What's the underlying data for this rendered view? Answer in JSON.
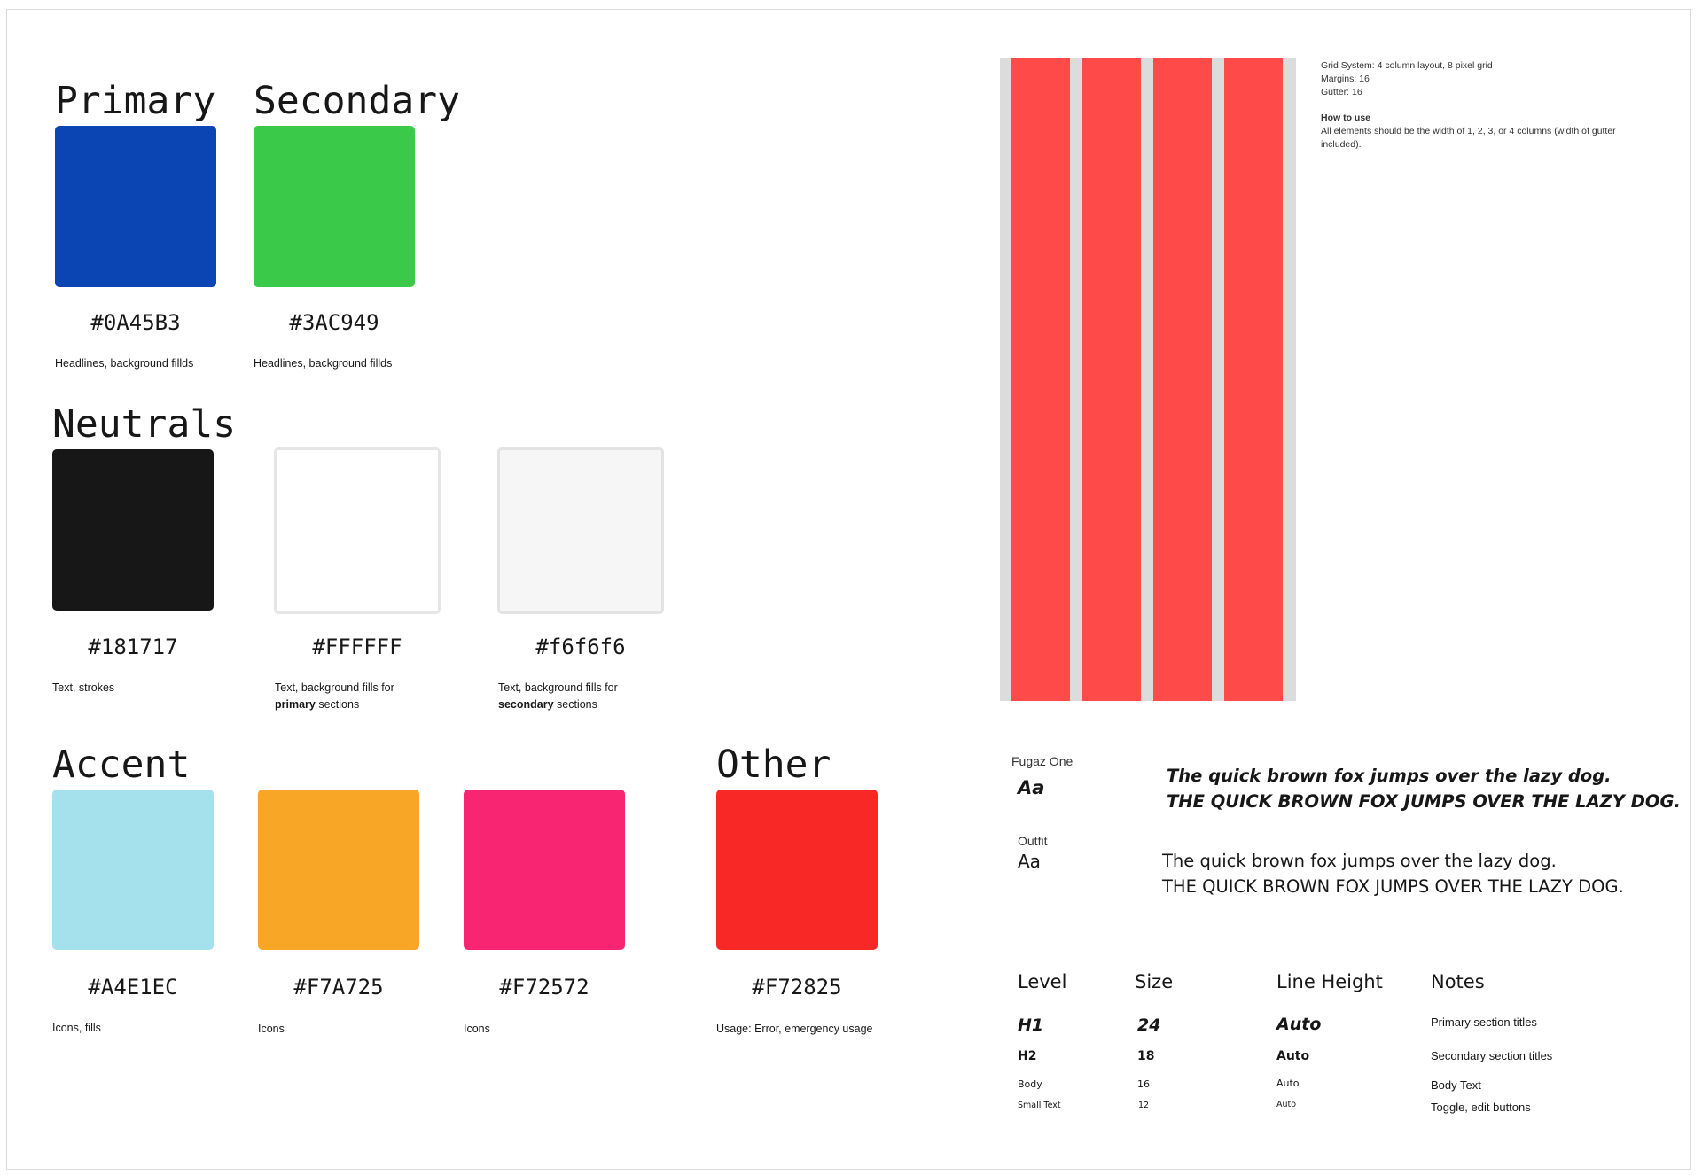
{
  "palette": {
    "primary": {
      "heading": "Primary",
      "hex": "#0A45B3",
      "color": "#0A45B3",
      "usage": "Headlines, background fillds"
    },
    "secondary": {
      "heading": "Secondary",
      "hex": "#3AC949",
      "color": "#3AC949",
      "usage": "Headlines, background fillds"
    },
    "neutrals": {
      "heading": "Neutrals",
      "items": [
        {
          "hex": "#181717",
          "color": "#181717",
          "usage": "Text, strokes"
        },
        {
          "hex": "#FFFFFF",
          "color": "#FFFFFF",
          "usage_prefix": "Text, background fills for ",
          "usage_bold": "primary",
          "usage_suffix": " sections"
        },
        {
          "hex": "#f6f6f6",
          "color": "#f6f6f6",
          "usage_prefix": "Text, background fills for ",
          "usage_bold": "secondary",
          "usage_suffix": " sections"
        }
      ]
    },
    "accent": {
      "heading": "Accent",
      "items": [
        {
          "hex": "#A4E1EC",
          "color": "#A4E1EC",
          "usage": "Icons, fills"
        },
        {
          "hex": "#F7A725",
          "color": "#F7A725",
          "usage": "Icons"
        },
        {
          "hex": "#F72572",
          "color": "#F72572",
          "usage": "Icons"
        }
      ]
    },
    "other": {
      "heading": "Other",
      "hex": "#F72825",
      "color": "#F72825",
      "usage": "Usage: Error, emergency usage"
    }
  },
  "grid": {
    "column_color": "#ff4a4a",
    "background_color": "#dcdcdc",
    "notes": {
      "line1": "Grid System: 4 column layout, 8 pixel grid",
      "line2": "Margins: 16",
      "line3": "Gutter: 16",
      "how_to_title": "How to use",
      "how_to_text1": "All elements should be the width of 1, 2, 3, or 4 columns (width of gutter",
      "how_to_text2": "included)."
    }
  },
  "typography": {
    "fonts": [
      {
        "name": "Fugaz One",
        "aa": "Aa",
        "sample1": "The quick brown fox jumps over the lazy dog.",
        "sample2": "THE QUICK BROWN FOX JUMPS OVER THE LAZY DOG."
      },
      {
        "name": "Outfit",
        "aa": "Aa",
        "sample1": "The quick brown fox jumps over the lazy dog.",
        "sample2": "THE QUICK BROWN FOX JUMPS OVER THE LAZY DOG."
      }
    ],
    "table": {
      "headers": {
        "level": "Level",
        "size": "Size",
        "line_height": "Line Height",
        "notes": "Notes"
      },
      "rows": [
        {
          "level": "H1",
          "size": "24",
          "line_height": "Auto",
          "notes": "Primary section titles"
        },
        {
          "level": "H2",
          "size": "18",
          "line_height": "Auto",
          "notes": "Secondary section titles"
        },
        {
          "level": "Body",
          "size": "16",
          "line_height": "Auto",
          "notes": "Body Text"
        },
        {
          "level": "Small Text",
          "size": "12",
          "line_height": "Auto",
          "notes": "Toggle, edit buttons"
        }
      ]
    }
  }
}
